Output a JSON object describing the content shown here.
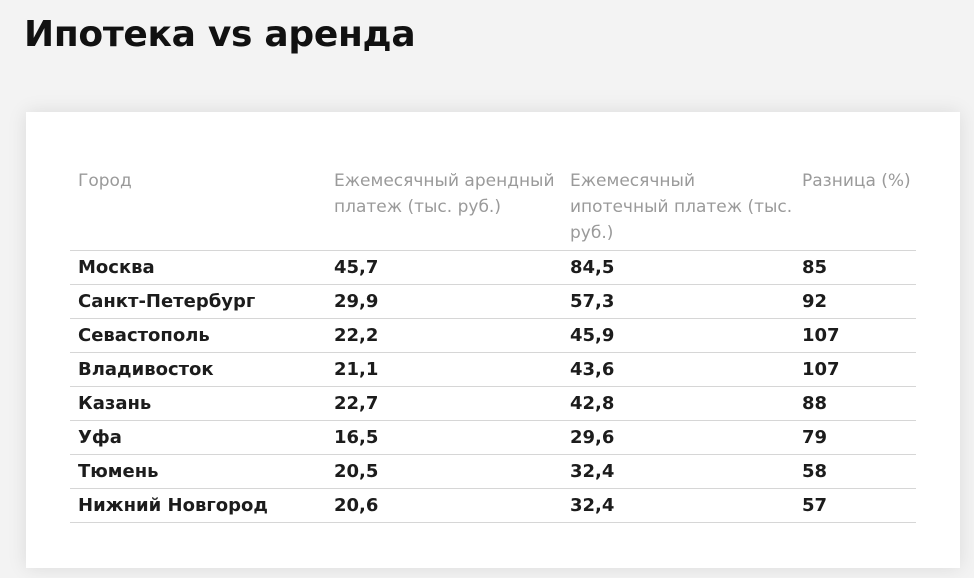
{
  "title": "Ипотека vs аренда",
  "table": {
    "headers": [
      "Город",
      "Ежемесячный арендный платеж (тыс. руб.)",
      "Ежемесячный ипотечный платеж (тыс. руб.)",
      "Разница (%)"
    ],
    "rows": [
      [
        "Москва",
        "45,7",
        "84,5",
        "85"
      ],
      [
        "Санкт-Петербург",
        "29,9",
        "57,3",
        "92"
      ],
      [
        "Севастополь",
        "22,2",
        "45,9",
        "107"
      ],
      [
        "Владивосток",
        "21,1",
        "43,6",
        "107"
      ],
      [
        "Казань",
        "22,7",
        "42,8",
        "88"
      ],
      [
        "Уфа",
        "16,5",
        "29,6",
        "79"
      ],
      [
        "Тюмень",
        "20,5",
        "32,4",
        "58"
      ],
      [
        "Нижний Новгород",
        "20,6",
        "32,4",
        "57"
      ]
    ]
  }
}
